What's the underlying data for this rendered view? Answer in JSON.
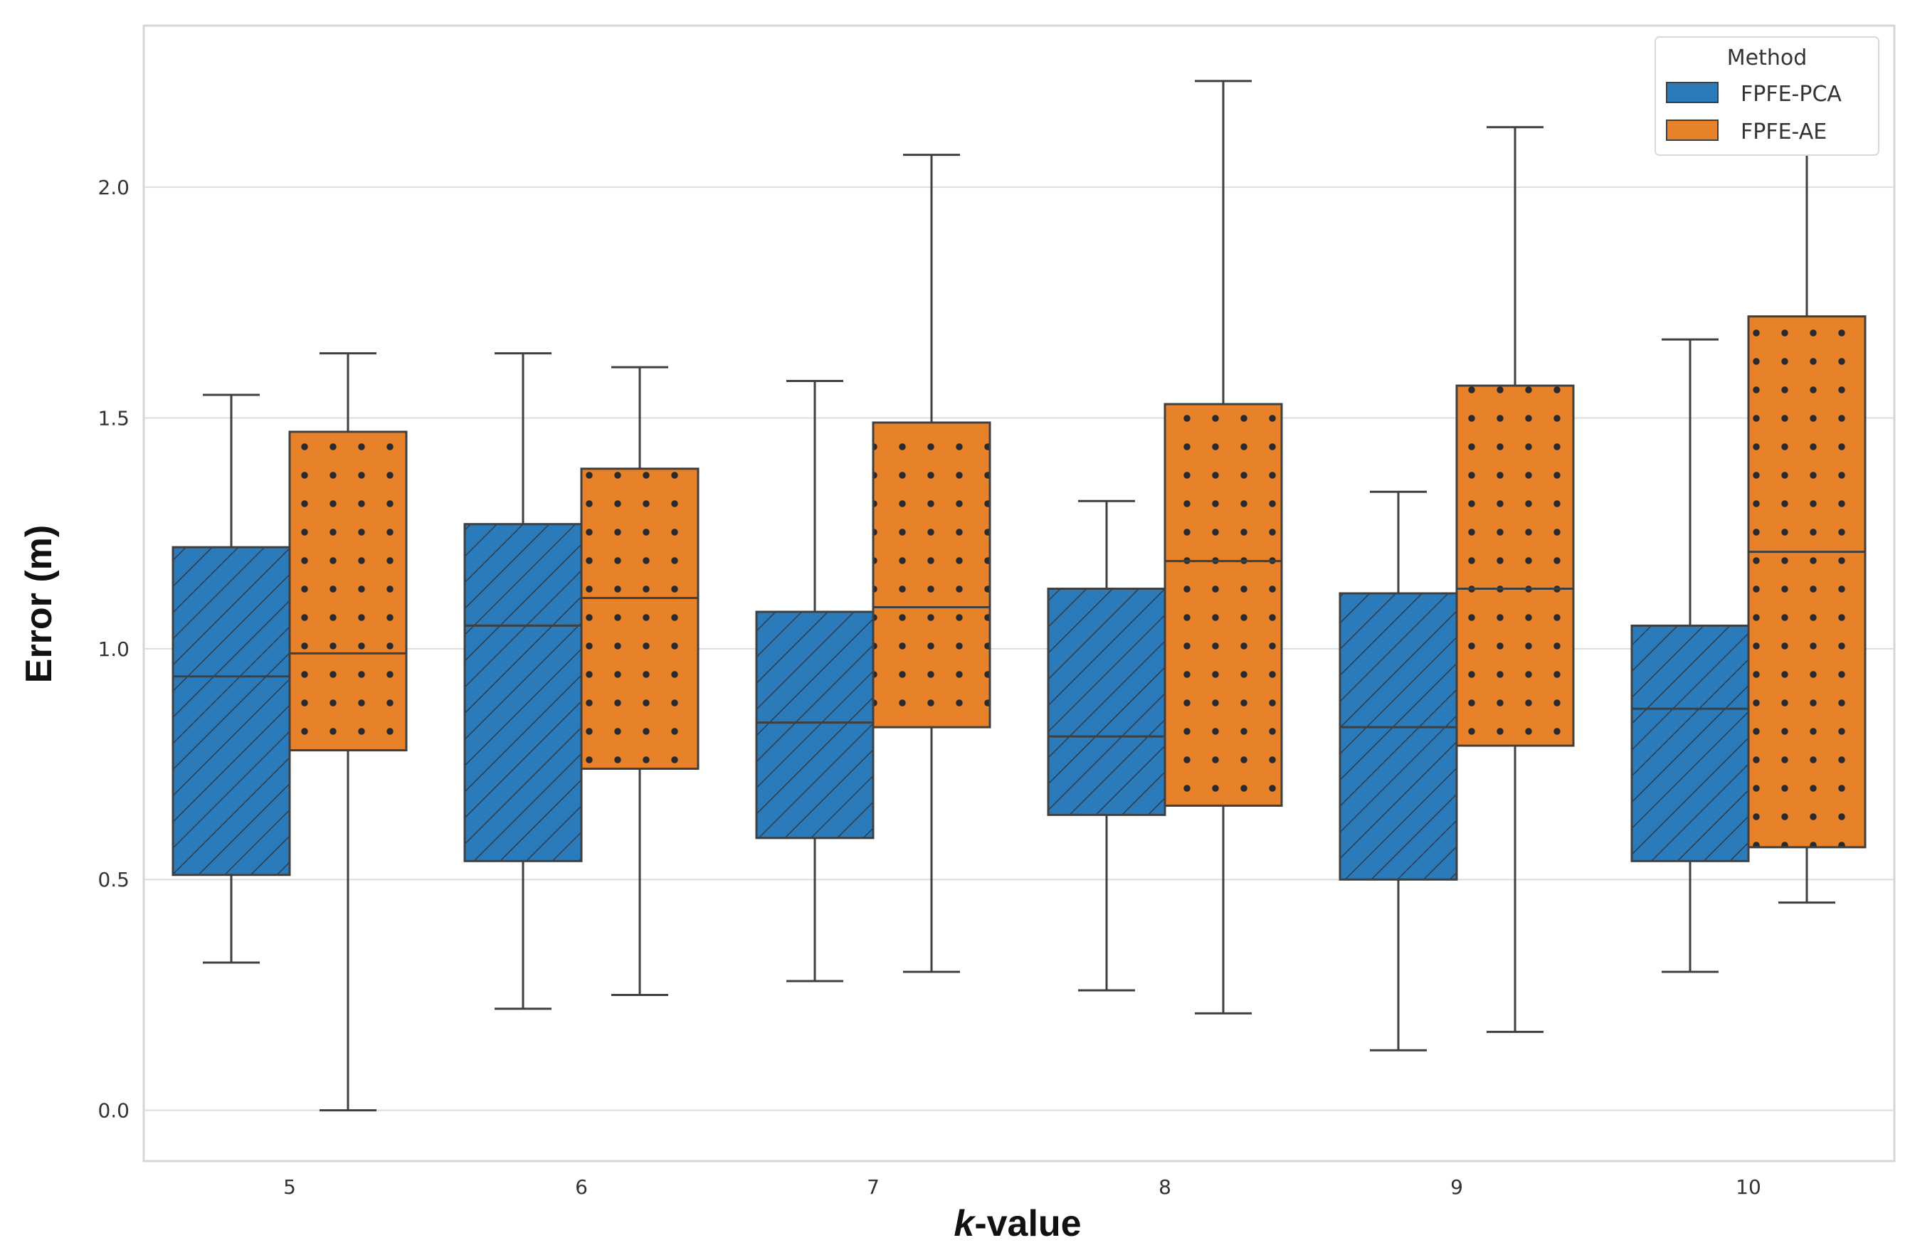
{
  "chart_data": {
    "type": "boxplot",
    "title": "",
    "xlabel_italic": "k",
    "xlabel_rest": "-value",
    "ylabel": "Error (m)",
    "ylim": [
      -0.11,
      2.35
    ],
    "yticks": [
      0.0,
      0.5,
      1.0,
      1.5,
      2.0
    ],
    "ytick_labels": [
      "0.0",
      "0.5",
      "1.0",
      "1.5",
      "2.0"
    ],
    "categories": [
      "5",
      "6",
      "7",
      "8",
      "9",
      "10"
    ],
    "grid": true,
    "legend": {
      "title": "Method",
      "placement": "top-right",
      "entries": [
        "FPFE-PCA",
        "FPFE-AE"
      ]
    },
    "series": [
      {
        "name": "FPFE-PCA",
        "color": "#2b7bba",
        "pattern": "diagonal-hatch",
        "boxes": [
          {
            "category": "5",
            "whisker_low": 0.32,
            "q1": 0.51,
            "median": 0.94,
            "q3": 1.22,
            "whisker_high": 1.55
          },
          {
            "category": "6",
            "whisker_low": 0.22,
            "q1": 0.54,
            "median": 1.05,
            "q3": 1.27,
            "whisker_high": 1.64
          },
          {
            "category": "7",
            "whisker_low": 0.28,
            "q1": 0.59,
            "median": 0.84,
            "q3": 1.08,
            "whisker_high": 1.58
          },
          {
            "category": "8",
            "whisker_low": 0.26,
            "q1": 0.64,
            "median": 0.81,
            "q3": 1.13,
            "whisker_high": 1.32
          },
          {
            "category": "9",
            "whisker_low": 0.13,
            "q1": 0.5,
            "median": 0.83,
            "q3": 1.12,
            "whisker_high": 1.34
          },
          {
            "category": "10",
            "whisker_low": 0.3,
            "q1": 0.54,
            "median": 0.87,
            "q3": 1.05,
            "whisker_high": 1.67
          }
        ]
      },
      {
        "name": "FPFE-AE",
        "color": "#e8822a",
        "pattern": "dots",
        "boxes": [
          {
            "category": "5",
            "whisker_low": 0.0,
            "q1": 0.78,
            "median": 0.99,
            "q3": 1.47,
            "whisker_high": 1.64
          },
          {
            "category": "6",
            "whisker_low": 0.25,
            "q1": 0.74,
            "median": 1.11,
            "q3": 1.39,
            "whisker_high": 1.61
          },
          {
            "category": "7",
            "whisker_low": 0.3,
            "q1": 0.83,
            "median": 1.09,
            "q3": 1.49,
            "whisker_high": 2.07
          },
          {
            "category": "8",
            "whisker_low": 0.21,
            "q1": 0.66,
            "median": 1.19,
            "q3": 1.53,
            "whisker_high": 2.23
          },
          {
            "category": "9",
            "whisker_low": 0.17,
            "q1": 0.79,
            "median": 1.13,
            "q3": 1.57,
            "whisker_high": 2.13
          },
          {
            "category": "10",
            "whisker_low": 0.45,
            "q1": 0.57,
            "median": 1.21,
            "q3": 1.72,
            "whisker_high": 2.08
          }
        ]
      }
    ]
  },
  "colors": {
    "grid": "#dddddd",
    "frame": "#d6d6d6",
    "box_edge": "#3f3f3f"
  }
}
